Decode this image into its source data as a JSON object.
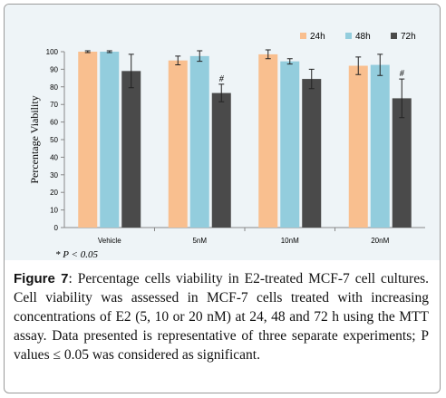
{
  "chart_data": {
    "type": "bar",
    "categories": [
      "Vehicle",
      "5nM",
      "10nM",
      "20nM"
    ],
    "series": [
      {
        "name": "24h",
        "color": "#f9bf8f",
        "values": [
          100,
          95,
          98.5,
          92
        ],
        "errors": [
          0.5,
          2.5,
          2.5,
          5
        ]
      },
      {
        "name": "48h",
        "color": "#93cddd",
        "values": [
          100,
          97.5,
          94.5,
          92.5
        ],
        "errors": [
          0.5,
          3,
          1.5,
          6
        ]
      },
      {
        "name": "72h",
        "color": "#4a4a4a",
        "values": [
          89,
          76.5,
          84.5,
          73.5
        ],
        "errors": [
          9.5,
          5,
          5.5,
          11
        ]
      }
    ],
    "significance": [
      {
        "category": "5nM",
        "series": "72h",
        "mark": "#"
      },
      {
        "category": "20nM",
        "series": "72h",
        "mark": "#"
      }
    ],
    "ylabel": "Percentage Viability",
    "ylim": [
      0,
      100
    ],
    "yticks": [
      0,
      10,
      20,
      30,
      40,
      50,
      60,
      70,
      80,
      90,
      100
    ],
    "legend_position": "top-right",
    "grid": false
  },
  "footnote": "* P < 0.05",
  "caption": {
    "label": "Figure",
    "number": "7",
    "text": ": Percentage cells viability in E2-treated MCF-7 cell cultures. Cell viability was assessed in MCF-7 cells treated with increasing concentrations of E2 (5, 10 or 20 nM) at 24, 48 and 72 h using the MTT assay. Data presented is representative of three separate experiments; P values ≤ 0.05 was considered as significant."
  }
}
